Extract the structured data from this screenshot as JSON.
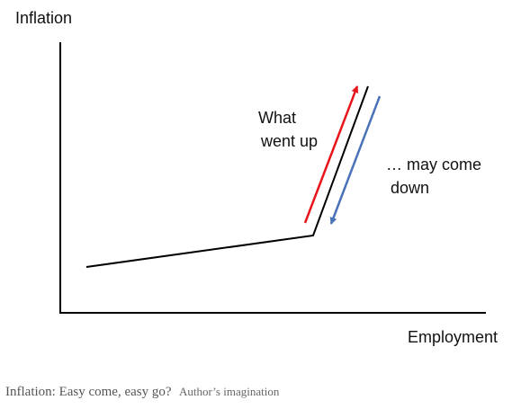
{
  "diagram": {
    "y_axis_label": "Inflation",
    "x_axis_label": "Employment",
    "annotation_up": [
      "What",
      "went up"
    ],
    "annotation_down": [
      "… may come",
      "down"
    ],
    "colors": {
      "curve": "#000000",
      "axes": "#000000",
      "up_arrow": "#e8151b",
      "down_arrow": "#4a72b8"
    }
  },
  "caption": {
    "text": "Inflation: Easy come, easy go?",
    "credit": "Author’s imagination"
  }
}
